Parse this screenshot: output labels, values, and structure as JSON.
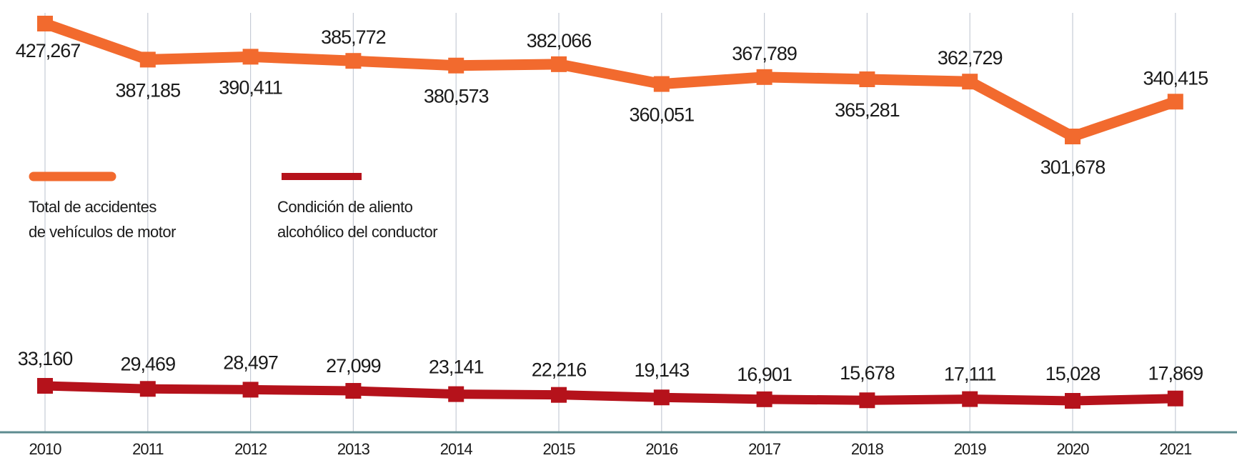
{
  "chart_data": {
    "type": "line",
    "categories": [
      "2010",
      "2011",
      "2012",
      "2013",
      "2014",
      "2015",
      "2016",
      "2017",
      "2018",
      "2019",
      "2020",
      "2021"
    ],
    "series": [
      {
        "name": "Total de accidentes de vehículos de motor",
        "color": "#F26A2E",
        "values": [
          427267,
          387185,
          390411,
          385772,
          380573,
          382066,
          360051,
          367789,
          365281,
          362729,
          301678,
          340415
        ],
        "labels": [
          "427,267",
          "387,185",
          "390,411",
          "385,772",
          "380,573",
          "382,066",
          "360,051",
          "367,789",
          "365,281",
          "362,729",
          "301,678",
          "340,415"
        ]
      },
      {
        "name": "Condición de aliento alcohólico del conductor",
        "color": "#B5121B",
        "values": [
          33160,
          29469,
          28497,
          27099,
          23141,
          22216,
          19143,
          16901,
          15678,
          17111,
          15028,
          17869
        ],
        "labels": [
          "33,160",
          "29,469",
          "28,497",
          "27,099",
          "23,141",
          "22,216",
          "19,143",
          "16,901",
          "15,678",
          "17,111",
          "15,028",
          "17,869"
        ]
      }
    ],
    "legend": {
      "placement": "left-middle",
      "items": [
        {
          "line1": "Total de accidentes",
          "line2": "de vehículos de motor",
          "color": "#F26A2E"
        },
        {
          "line1": "Condición de aliento",
          "line2": "alcohólico del conductor",
          "color": "#B5121B"
        }
      ]
    },
    "grid": "vertical",
    "axis_color": "#5E8C90"
  }
}
